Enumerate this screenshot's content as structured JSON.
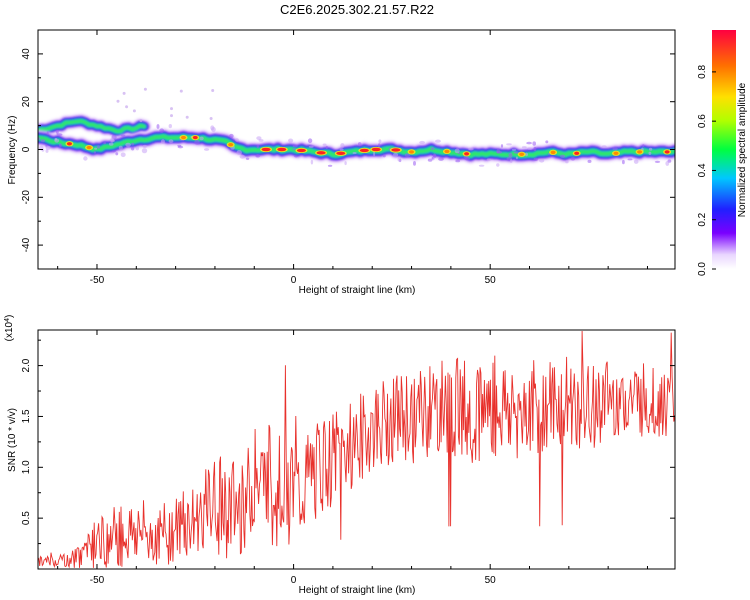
{
  "title": "C2E6.2025.302.21.57.R22",
  "chart_data": [
    {
      "type": "heatmap",
      "title": "C2E6.2025.302.21.57.R22",
      "xlabel": "Height of straight line (km)",
      "ylabel": "Frequency (Hz)",
      "xlim": [
        -65,
        97
      ],
      "ylim": [
        -50,
        50
      ],
      "xticks": [
        -50,
        0,
        50
      ],
      "yticks": [
        -40,
        -20,
        0,
        20,
        40
      ],
      "ridge": {
        "x": [
          -65,
          -60,
          -55,
          -50,
          -45,
          -40,
          -35,
          -30,
          -25,
          -20,
          -17,
          -15,
          -12,
          -10,
          -5,
          0,
          5,
          10,
          15,
          20,
          25,
          30,
          35,
          40,
          45,
          50,
          55,
          60,
          65,
          70,
          75,
          80,
          85,
          90,
          97
        ],
        "y": [
          5,
          3,
          2,
          0,
          2,
          4,
          5,
          5,
          5,
          4,
          3,
          1,
          0,
          0,
          0,
          0,
          -1,
          -2,
          -1,
          0,
          0,
          -1,
          0,
          -1,
          -2,
          -2,
          -2,
          -2,
          -1,
          -2,
          -1,
          -2,
          -1,
          -1,
          -1
        ]
      },
      "upper_branch": {
        "x": [
          -65,
          -60,
          -55,
          -50,
          -45,
          -40,
          -38
        ],
        "y": [
          8,
          10,
          12,
          10,
          8,
          9,
          10
        ]
      },
      "colorbar": {
        "label": "Normalized spectral amplitude",
        "range": [
          0.0,
          1.0
        ],
        "ticks": [
          "0.0",
          "0.2",
          "0.4",
          "0.6",
          "0.8"
        ]
      }
    },
    {
      "type": "line",
      "xlabel": "Height of straight line (km)",
      "ylabel": "SNR (10 * v/v)",
      "ylabel_scale": "(x10",
      "ylabel_exponent": "4",
      "xlim": [
        -65,
        97
      ],
      "ylim": [
        0,
        2.35
      ],
      "xticks": [
        -50,
        0,
        50
      ],
      "yticks": [
        "0.5",
        "1.0",
        "1.5",
        "2.0"
      ],
      "series": [
        {
          "name": "SNR",
          "color": "#e8302b",
          "envelope": {
            "x": [
              -65,
              -60,
              -55,
              -50,
              -45,
              -40,
              -35,
              -30,
              -25,
              -20,
              -15,
              -12,
              -10,
              -5,
              0,
              5,
              10,
              15,
              20,
              25,
              30,
              35,
              40,
              45,
              50,
              55,
              60,
              65,
              70,
              75,
              80,
              85,
              90,
              97
            ],
            "base": [
              0.05,
              0.06,
              0.08,
              0.15,
              0.2,
              0.25,
              0.2,
              0.25,
              0.35,
              0.5,
              0.35,
              0.5,
              0.6,
              0.8,
              0.45,
              0.75,
              0.9,
              1.05,
              1.2,
              1.3,
              1.3,
              1.35,
              1.4,
              1.35,
              1.4,
              1.35,
              1.4,
              1.4,
              1.45,
              1.4,
              1.5,
              1.5,
              1.5,
              1.5
            ],
            "amp": [
              0.08,
              0.1,
              0.2,
              0.4,
              0.5,
              0.55,
              0.45,
              0.55,
              0.55,
              0.7,
              0.9,
              0.8,
              0.7,
              0.8,
              0.8,
              0.8,
              0.75,
              0.7,
              0.7,
              0.7,
              0.75,
              0.8,
              0.8,
              0.85,
              0.85,
              0.85,
              0.8,
              0.75,
              0.75,
              0.7,
              0.65,
              0.65,
              0.6,
              0.55
            ]
          }
        }
      ]
    }
  ]
}
